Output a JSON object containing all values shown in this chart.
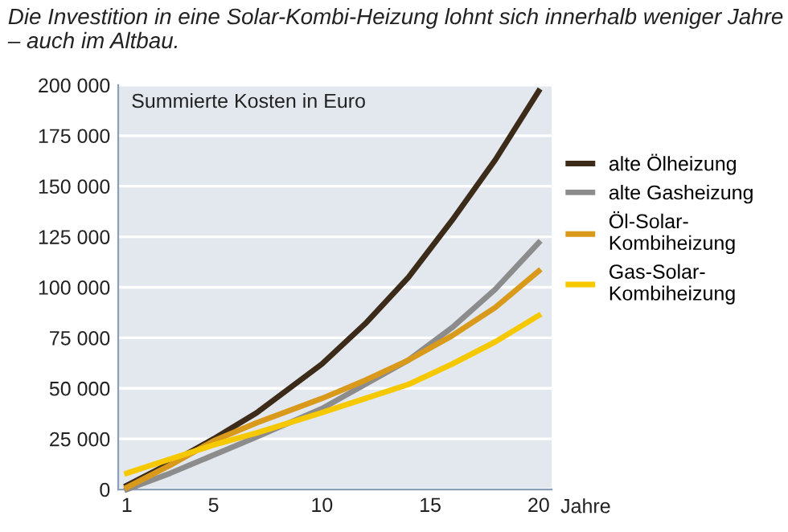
{
  "chart_data": {
    "type": "line",
    "title": "Die Investition in eine Solar-Kombi-Heizung lohnt sich innerhalb weniger Jahre – auch im Altbau.",
    "ylabel": "Summierte Kosten in Euro",
    "xlabel": "Jahre",
    "x": [
      1,
      3,
      5,
      7,
      10,
      12,
      14,
      16,
      18,
      20
    ],
    "series": [
      {
        "name": "alte Ölheizung",
        "color": "#3d2b1a",
        "values": [
          2000,
          13000,
          25000,
          38000,
          62000,
          82000,
          105000,
          133000,
          163000,
          197000
        ]
      },
      {
        "name": "alte Gasheizung",
        "color": "#8c8c8c",
        "values": [
          0,
          8000,
          17000,
          26000,
          40000,
          52000,
          64000,
          80000,
          99000,
          122000
        ]
      },
      {
        "name": "Öl-Solar-\nKombiheizung",
        "color": "#d99a1c",
        "values": [
          1000,
          12000,
          24000,
          33000,
          45000,
          54000,
          64000,
          76000,
          90000,
          108000
        ]
      },
      {
        "name": "Gas-Solar-\nKombiheizung",
        "color": "#f5c800",
        "values": [
          8000,
          15000,
          22000,
          28000,
          38000,
          45000,
          52000,
          62000,
          73000,
          86000
        ]
      }
    ],
    "xlim": [
      0.6,
      20.6
    ],
    "ylim": [
      0,
      200000
    ],
    "xticks": [
      1,
      5,
      10,
      15,
      20
    ],
    "yticks": [
      {
        "value": 0,
        "label": "0"
      },
      {
        "value": 25000,
        "label": "25 000"
      },
      {
        "value": 50000,
        "label": "50 000"
      },
      {
        "value": 75000,
        "label": "75 000"
      },
      {
        "value": 100000,
        "label": "100 000"
      },
      {
        "value": 125000,
        "label": "125 000"
      },
      {
        "value": 150000,
        "label": "150 000"
      },
      {
        "value": 175000,
        "label": "175 000"
      },
      {
        "value": 200000,
        "label": "200 000"
      }
    ],
    "grid": "y",
    "legend": "right",
    "line_style": "solid",
    "marker": "none"
  }
}
